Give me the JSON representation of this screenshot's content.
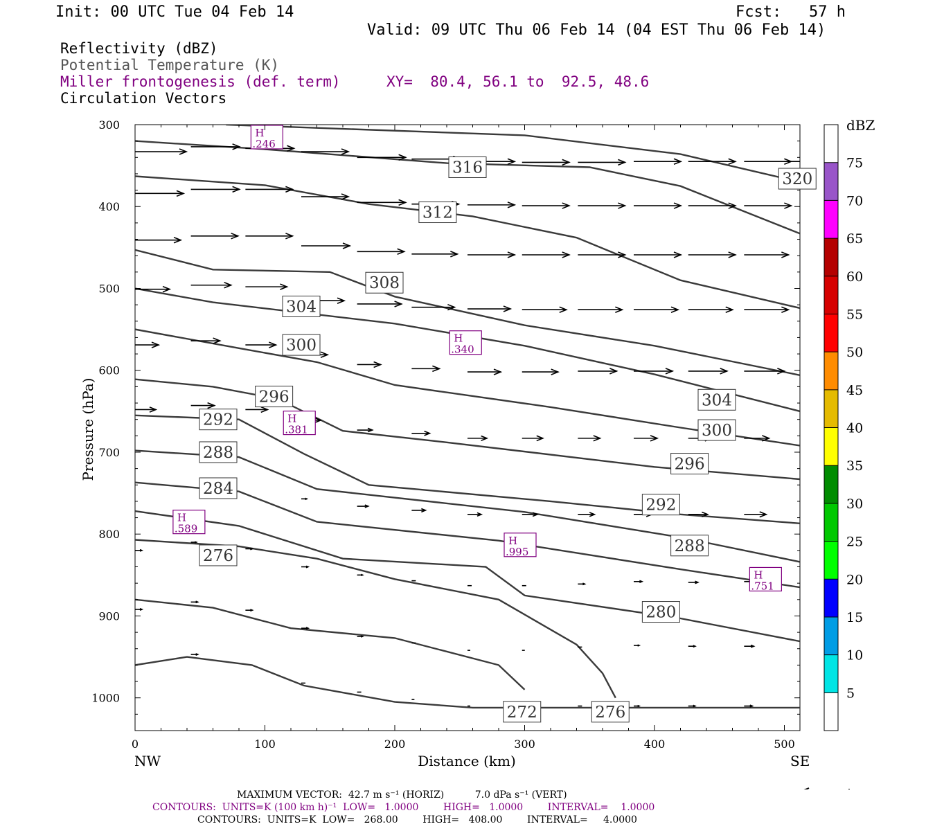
{
  "header": {
    "init": "Init: 00 UTC Tue 04 Feb 14",
    "fcst": "Fcst:   57 h",
    "valid": "Valid: 09 UTC Thu 06 Feb 14 (04 EST Thu 06 Feb 14)"
  },
  "legend": {
    "line1": "Reflectivity (dBZ)",
    "line2": "Potential Temperature (K)",
    "line3": "Miller frontogenesis (def. term)",
    "xy": "XY=  80.4, 56.1 to  92.5, 48.6",
    "line4": "Circulation Vectors"
  },
  "colors": {
    "theta": "#3a3a3a",
    "fronto": "#800080",
    "vector": "#000000"
  },
  "chart_data": {
    "type": "line",
    "xlabel": "Distance (km)",
    "ylabel": "Pressure (hPa)",
    "xlim": [
      0,
      512
    ],
    "ylim": [
      1040,
      300
    ],
    "y_scale": "linear, inverted",
    "xticks": [
      0,
      100,
      200,
      300,
      400,
      500
    ],
    "yticks": [
      300,
      400,
      500,
      600,
      700,
      800,
      900,
      1000
    ],
    "x_end_labels": {
      "left": "NW",
      "right": "SE"
    },
    "theta_contours": [
      {
        "name": "320",
        "points": [
          [
            70,
            300
          ],
          [
            300,
            313
          ],
          [
            420,
            336
          ],
          [
            512,
            370
          ]
        ],
        "label_at": [
          510,
          366
        ]
      },
      {
        "name": "316",
        "points": [
          [
            0,
            320
          ],
          [
            100,
            330
          ],
          [
            240,
            347
          ],
          [
            350,
            352
          ],
          [
            420,
            375
          ],
          [
            512,
            433
          ]
        ],
        "label_at": [
          256,
          352
        ]
      },
      {
        "name": "312",
        "points": [
          [
            0,
            363
          ],
          [
            100,
            374
          ],
          [
            180,
            397
          ],
          [
            260,
            412
          ],
          [
            340,
            438
          ],
          [
            420,
            490
          ],
          [
            512,
            524
          ]
        ],
        "label_at": [
          233,
          407
        ]
      },
      {
        "name": "308",
        "points": [
          [
            0,
            453
          ],
          [
            60,
            477
          ],
          [
            150,
            480
          ],
          [
            200,
            510
          ],
          [
            300,
            545
          ],
          [
            400,
            570
          ],
          [
            512,
            606
          ]
        ],
        "label_at": [
          192,
          493
        ]
      },
      {
        "name": "304",
        "points": [
          [
            0,
            500
          ],
          [
            60,
            517
          ],
          [
            200,
            543
          ],
          [
            300,
            570
          ],
          [
            400,
            605
          ],
          [
            512,
            650
          ]
        ],
        "label_at": [
          128,
          522
        ]
      },
      {
        "name": "300",
        "points": [
          [
            0,
            550
          ],
          [
            80,
            573
          ],
          [
            140,
            590
          ],
          [
            200,
            618
          ],
          [
            320,
            645
          ],
          [
            420,
            670
          ],
          [
            512,
            692
          ]
        ],
        "label_at": [
          128,
          569
        ]
      },
      {
        "name": "296",
        "points": [
          [
            0,
            611
          ],
          [
            60,
            620
          ],
          [
            110,
            635
          ],
          [
            160,
            674
          ],
          [
            240,
            688
          ],
          [
            400,
            718
          ],
          [
            512,
            733
          ]
        ],
        "label_at": [
          107,
          632
        ]
      },
      {
        "name": "292",
        "points": [
          [
            0,
            655
          ],
          [
            80,
            660
          ],
          [
            130,
            702
          ],
          [
            180,
            740
          ],
          [
            320,
            760
          ],
          [
            420,
            776
          ],
          [
            512,
            787
          ]
        ],
        "label_at": [
          64,
          660
        ]
      },
      {
        "name": "288",
        "points": [
          [
            0,
            698
          ],
          [
            80,
            706
          ],
          [
            140,
            745
          ],
          [
            300,
            773
          ],
          [
            420,
            804
          ],
          [
            512,
            834
          ]
        ],
        "label_at": [
          64,
          700
        ]
      },
      {
        "name": "284",
        "points": [
          [
            0,
            737
          ],
          [
            80,
            748
          ],
          [
            140,
            785
          ],
          [
            280,
            808
          ],
          [
            420,
            843
          ],
          [
            512,
            865
          ]
        ],
        "label_at": [
          64,
          744
        ]
      },
      {
        "name": "280",
        "points": [
          [
            0,
            772
          ],
          [
            80,
            790
          ],
          [
            160,
            830
          ],
          [
            270,
            840
          ],
          [
            300,
            875
          ],
          [
            420,
            903
          ],
          [
            512,
            931
          ]
        ],
        "label_at": [
          405,
          895
        ]
      },
      {
        "name": "276",
        "points": [
          [
            0,
            807
          ],
          [
            80,
            815
          ],
          [
            140,
            830
          ],
          [
            200,
            855
          ],
          [
            280,
            880
          ],
          [
            340,
            935
          ],
          [
            360,
            970
          ],
          [
            370,
            1000
          ]
        ],
        "label_at": [
          64,
          826
        ]
      },
      {
        "name": "272",
        "points": [
          [
            0,
            880
          ],
          [
            60,
            890
          ],
          [
            120,
            915
          ],
          [
            200,
            927
          ],
          [
            280,
            960
          ],
          [
            300,
            990
          ]
        ],
        "label_at": [
          298,
          1017
        ]
      },
      {
        "name": "268",
        "points": [
          [
            0,
            960
          ],
          [
            40,
            950
          ],
          [
            90,
            960
          ],
          [
            130,
            985
          ],
          [
            200,
            1005
          ],
          [
            260,
            1012
          ],
          [
            512,
            1012
          ]
        ],
        "label_at": [
          366,
          1017
        ]
      }
    ],
    "theta_labels": [
      {
        "text": "320",
        "x": 510,
        "y": 366
      },
      {
        "text": "316",
        "x": 256,
        "y": 352
      },
      {
        "text": "312",
        "x": 233,
        "y": 407
      },
      {
        "text": "308",
        "x": 192,
        "y": 493
      },
      {
        "text": "304",
        "x": 128,
        "y": 522
      },
      {
        "text": "300",
        "x": 128,
        "y": 569
      },
      {
        "text": "296",
        "x": 107,
        "y": 632
      },
      {
        "text": "292",
        "x": 64,
        "y": 660
      },
      {
        "text": "288",
        "x": 64,
        "y": 700
      },
      {
        "text": "284",
        "x": 64,
        "y": 744
      },
      {
        "text": "276",
        "x": 64,
        "y": 826
      },
      {
        "text": "304",
        "x": 448,
        "y": 636
      },
      {
        "text": "300",
        "x": 448,
        "y": 673
      },
      {
        "text": "296",
        "x": 427,
        "y": 714
      },
      {
        "text": "292",
        "x": 405,
        "y": 764
      },
      {
        "text": "288",
        "x": 427,
        "y": 814
      },
      {
        "text": "280",
        "x": 405,
        "y": 895
      },
      {
        "text": "272",
        "x": 298,
        "y": 1017
      },
      {
        "text": "276",
        "x": 366,
        "y": 1017
      }
    ],
    "fronto_maxima": [
      {
        "label": "H",
        "value": ".246",
        "x": 101,
        "y": 316
      },
      {
        "label": "H",
        "value": ".340",
        "x": 254,
        "y": 567
      },
      {
        "label": "H",
        "value": ".381",
        "x": 126,
        "y": 665
      },
      {
        "label": "H",
        "value": ".589",
        "x": 41,
        "y": 786
      },
      {
        "label": "H",
        "value": ".995",
        "x": 296,
        "y": 814
      },
      {
        "label": "H",
        "value": ".751",
        "x": 485,
        "y": 856
      }
    ],
    "vectors": [
      {
        "x": 0,
        "p": 333,
        "u": 37
      },
      {
        "x": 43,
        "p": 327,
        "u": 35
      },
      {
        "x": 85,
        "p": 329,
        "u": 35
      },
      {
        "x": 128,
        "p": 333,
        "u": 34
      },
      {
        "x": 171,
        "p": 340,
        "u": 35
      },
      {
        "x": 213,
        "p": 342,
        "u": 35
      },
      {
        "x": 256,
        "p": 345,
        "u": 34
      },
      {
        "x": 298,
        "p": 346,
        "u": 34
      },
      {
        "x": 341,
        "p": 346,
        "u": 34
      },
      {
        "x": 384,
        "p": 345,
        "u": 34
      },
      {
        "x": 426,
        "p": 345,
        "u": 34
      },
      {
        "x": 469,
        "p": 345,
        "u": 34
      },
      {
        "x": 500,
        "p": 345,
        "u": 30
      },
      {
        "x": 0,
        "p": 384,
        "u": 35
      },
      {
        "x": 43,
        "p": 379,
        "u": 35
      },
      {
        "x": 85,
        "p": 379,
        "u": 34
      },
      {
        "x": 128,
        "p": 388,
        "u": 34
      },
      {
        "x": 171,
        "p": 395,
        "u": 35
      },
      {
        "x": 213,
        "p": 397,
        "u": 34
      },
      {
        "x": 256,
        "p": 398,
        "u": 34
      },
      {
        "x": 298,
        "p": 399,
        "u": 34
      },
      {
        "x": 341,
        "p": 399,
        "u": 34
      },
      {
        "x": 384,
        "p": 399,
        "u": 34
      },
      {
        "x": 426,
        "p": 399,
        "u": 34
      },
      {
        "x": 469,
        "p": 399,
        "u": 34
      },
      {
        "x": 0,
        "p": 441,
        "u": 33
      },
      {
        "x": 43,
        "p": 436,
        "u": 34
      },
      {
        "x": 85,
        "p": 436,
        "u": 34
      },
      {
        "x": 128,
        "p": 448,
        "u": 35
      },
      {
        "x": 171,
        "p": 455,
        "u": 34
      },
      {
        "x": 213,
        "p": 458,
        "u": 33
      },
      {
        "x": 256,
        "p": 459,
        "u": 34
      },
      {
        "x": 298,
        "p": 459,
        "u": 34
      },
      {
        "x": 341,
        "p": 459,
        "u": 34
      },
      {
        "x": 384,
        "p": 459,
        "u": 34
      },
      {
        "x": 426,
        "p": 459,
        "u": 34
      },
      {
        "x": 469,
        "p": 459,
        "u": 32
      },
      {
        "x": 0,
        "p": 501,
        "u": 25
      },
      {
        "x": 43,
        "p": 496,
        "u": 29
      },
      {
        "x": 85,
        "p": 498,
        "u": 30
      },
      {
        "x": 128,
        "p": 515,
        "u": 31
      },
      {
        "x": 171,
        "p": 519,
        "u": 32
      },
      {
        "x": 213,
        "p": 523,
        "u": 31
      },
      {
        "x": 256,
        "p": 525,
        "u": 31
      },
      {
        "x": 298,
        "p": 526,
        "u": 32
      },
      {
        "x": 341,
        "p": 526,
        "u": 32
      },
      {
        "x": 384,
        "p": 526,
        "u": 32
      },
      {
        "x": 426,
        "p": 526,
        "u": 32
      },
      {
        "x": 469,
        "p": 526,
        "u": 32
      },
      {
        "x": 0,
        "p": 569,
        "u": 17
      },
      {
        "x": 43,
        "p": 564,
        "u": 21
      },
      {
        "x": 85,
        "p": 569,
        "u": 22
      },
      {
        "x": 128,
        "p": 581,
        "u": 19
      },
      {
        "x": 171,
        "p": 593,
        "u": 17
      },
      {
        "x": 213,
        "p": 598,
        "u": 20
      },
      {
        "x": 256,
        "p": 602,
        "u": 24
      },
      {
        "x": 298,
        "p": 602,
        "u": 26
      },
      {
        "x": 341,
        "p": 601,
        "u": 28
      },
      {
        "x": 384,
        "p": 601,
        "u": 28
      },
      {
        "x": 426,
        "p": 601,
        "u": 28
      },
      {
        "x": 469,
        "p": 601,
        "u": 29
      },
      {
        "x": 0,
        "p": 648,
        "u": 15
      },
      {
        "x": 43,
        "p": 643,
        "u": 17
      },
      {
        "x": 85,
        "p": 648,
        "u": 16
      },
      {
        "x": 128,
        "p": 661,
        "u": 14
      },
      {
        "x": 171,
        "p": 673,
        "u": 11
      },
      {
        "x": 213,
        "p": 677,
        "u": 13
      },
      {
        "x": 256,
        "p": 683,
        "u": 14
      },
      {
        "x": 298,
        "p": 683,
        "u": 15
      },
      {
        "x": 341,
        "p": 683,
        "u": 16
      },
      {
        "x": 384,
        "p": 683,
        "u": 17
      },
      {
        "x": 426,
        "p": 683,
        "u": 17
      },
      {
        "x": 469,
        "p": 683,
        "u": 18
      },
      {
        "x": 128,
        "p": 757,
        "u": 4
      },
      {
        "x": 171,
        "p": 766,
        "u": 8
      },
      {
        "x": 213,
        "p": 771,
        "u": 10
      },
      {
        "x": 256,
        "p": 776,
        "u": 10
      },
      {
        "x": 298,
        "p": 776,
        "u": 11
      },
      {
        "x": 341,
        "p": 776,
        "u": 12
      },
      {
        "x": 384,
        "p": 776,
        "u": 13
      },
      {
        "x": 426,
        "p": 776,
        "u": 14
      },
      {
        "x": 469,
        "p": 776,
        "u": 16
      },
      {
        "x": 0,
        "p": 820,
        "u": 5
      },
      {
        "x": 43,
        "p": 810,
        "u": 4
      },
      {
        "x": 85,
        "p": 818,
        "u": 5
      },
      {
        "x": 128,
        "p": 840,
        "u": 5
      },
      {
        "x": 171,
        "p": 850,
        "u": 4
      },
      {
        "x": 213,
        "p": 857,
        "u": 3
      },
      {
        "x": 256,
        "p": 863,
        "u": 3
      },
      {
        "x": 298,
        "p": 863,
        "u": 3
      },
      {
        "x": 341,
        "p": 861,
        "u": 5
      },
      {
        "x": 384,
        "p": 858,
        "u": 6
      },
      {
        "x": 426,
        "p": 859,
        "u": 7
      },
      {
        "x": 469,
        "p": 858,
        "u": 10
      },
      {
        "x": 0,
        "p": 892,
        "u": 5
      },
      {
        "x": 43,
        "p": 883,
        "u": 5
      },
      {
        "x": 85,
        "p": 893,
        "u": 5
      },
      {
        "x": 128,
        "p": 915,
        "u": 5
      },
      {
        "x": 171,
        "p": 925,
        "u": 4
      },
      {
        "x": 213,
        "p": 933,
        "u": 3
      },
      {
        "x": 256,
        "p": 942,
        "u": 2
      },
      {
        "x": 298,
        "p": 942,
        "u": 2
      },
      {
        "x": 341,
        "p": 938,
        "u": 3
      },
      {
        "x": 384,
        "p": 936,
        "u": 4
      },
      {
        "x": 426,
        "p": 937,
        "u": 5
      },
      {
        "x": 469,
        "p": 937,
        "u": 7
      },
      {
        "x": 43,
        "p": 947,
        "u": 5
      },
      {
        "x": 128,
        "p": 982,
        "u": 3
      },
      {
        "x": 171,
        "p": 993,
        "u": 3
      },
      {
        "x": 213,
        "p": 1002,
        "u": 2
      },
      {
        "x": 256,
        "p": 1010,
        "u": 2
      },
      {
        "x": 298,
        "p": 1010,
        "u": 2
      },
      {
        "x": 341,
        "p": 1010,
        "u": 3
      },
      {
        "x": 384,
        "p": 1010,
        "u": 4
      },
      {
        "x": 426,
        "p": 1010,
        "u": 5
      },
      {
        "x": 469,
        "p": 1010,
        "u": 6
      }
    ],
    "colorbar": {
      "title": "dBZ",
      "labels": [
        "5",
        "10",
        "15",
        "20",
        "25",
        "30",
        "35",
        "40",
        "45",
        "50",
        "55",
        "60",
        "65",
        "70",
        "75"
      ],
      "colors": [
        "#ffffff",
        "#00e5e5",
        "#009de5",
        "#0000ff",
        "#00ff00",
        "#00c800",
        "#008c00",
        "#ffff00",
        "#e5bb00",
        "#ff8c00",
        "#ff0000",
        "#d60000",
        "#b40000",
        "#ff00ff",
        "#9955c9",
        "#ffffff"
      ]
    }
  },
  "footer": {
    "max_vector": "MAXIMUM VECTOR:  42.7 m s⁻¹ (HORIZ)          7.0 dPa s⁻¹ (VERT)",
    "contours_fronto": "CONTOURS:  UNITS=K (100 km h)⁻¹  LOW=   1.0000        HIGH=   1.0000        INTERVAL=    1.0000",
    "contours_theta": "CONTOURS:  UNITS=K  LOW=   268.00        HIGH=   408.00        INTERVAL=     4.0000"
  }
}
